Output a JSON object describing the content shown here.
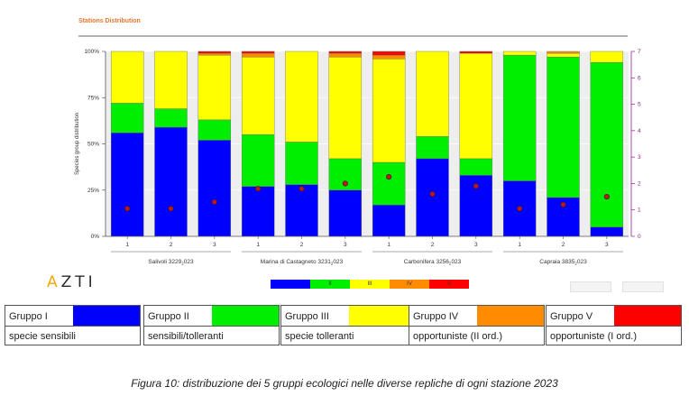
{
  "chart_data": {
    "type": "bar",
    "stacked": true,
    "title": "Stations Distribution",
    "ylabel": "Species group distribution",
    "ylim": [
      0,
      100
    ],
    "y_ticks": [
      "0%",
      "25%",
      "50%",
      "75%",
      "100%"
    ],
    "y_tick_values": [
      0,
      25,
      50,
      75,
      100
    ],
    "y2_ticks": [
      "0",
      "1",
      "2",
      "3",
      "4",
      "5",
      "6",
      "7"
    ],
    "y2lim": [
      0,
      7
    ],
    "categories": [
      "1",
      "2",
      "3",
      "1",
      "2",
      "3",
      "1",
      "2",
      "3",
      "1",
      "2",
      "3"
    ],
    "stations": [
      {
        "label": "Salivoli 3229",
        "sub": "2",
        "suffix": "023",
        "bars": 3
      },
      {
        "label": "Marina di Castagneto 3231",
        "sub": "2",
        "suffix": "023",
        "bars": 3
      },
      {
        "label": "Carbonifera 3256",
        "sub": "2",
        "suffix": "023",
        "bars": 3
      },
      {
        "label": "Capraia 3835",
        "sub": "2",
        "suffix": "023",
        "bars": 3
      }
    ],
    "series": [
      {
        "name": "I",
        "color": "#0000ff",
        "values": [
          56,
          59,
          52,
          27,
          28,
          25,
          17,
          42,
          33,
          30,
          21,
          5
        ]
      },
      {
        "name": "II",
        "color": "#00ee00",
        "values": [
          16,
          10,
          11,
          28,
          23,
          17,
          23,
          12,
          9,
          68,
          76,
          89
        ]
      },
      {
        "name": "III",
        "color": "#ffff00",
        "values": [
          28,
          31,
          35,
          42,
          49,
          55,
          56,
          46,
          57,
          2,
          2,
          6
        ]
      },
      {
        "name": "IV",
        "color": "#ff8c00",
        "values": [
          0,
          0,
          1,
          2,
          0,
          2,
          2,
          0,
          0,
          0,
          1,
          0
        ]
      },
      {
        "name": "V",
        "color": "#ff0000",
        "values": [
          0,
          0,
          1,
          1,
          0,
          1,
          2,
          0,
          1,
          0,
          0,
          0
        ]
      }
    ],
    "index_values": [
      1.05,
      1.05,
      1.3,
      1.8,
      1.8,
      2.0,
      2.25,
      1.6,
      1.9,
      1.05,
      1.2,
      1.5
    ],
    "index_marker": {
      "fill": "#c0151e",
      "stroke": "#222222"
    }
  },
  "logo_text": {
    "first": "A",
    "rest": "ZTI"
  },
  "legend_strip": [
    "",
    "II",
    "III",
    "IV",
    "V"
  ],
  "groups": [
    {
      "name": "Gruppo I",
      "desc": "specie sensibili",
      "color": "#0000ff"
    },
    {
      "name": "Gruppo II",
      "desc": "sensibili/tolleranti",
      "color": "#00ee00"
    },
    {
      "name": "Gruppo III",
      "desc": "specie tolleranti",
      "color": "#ffff00"
    },
    {
      "name": "Gruppo IV",
      "desc": "opportuniste (II ord.)",
      "color": "#ff8c00"
    },
    {
      "name": "Gruppo V",
      "desc": "opportuniste (I ord.)",
      "color": "#ff0000"
    }
  ],
  "caption": "Figura 10: distribuzione dei 5 gruppi ecologici nelle diverse repliche di ogni stazione 2023"
}
